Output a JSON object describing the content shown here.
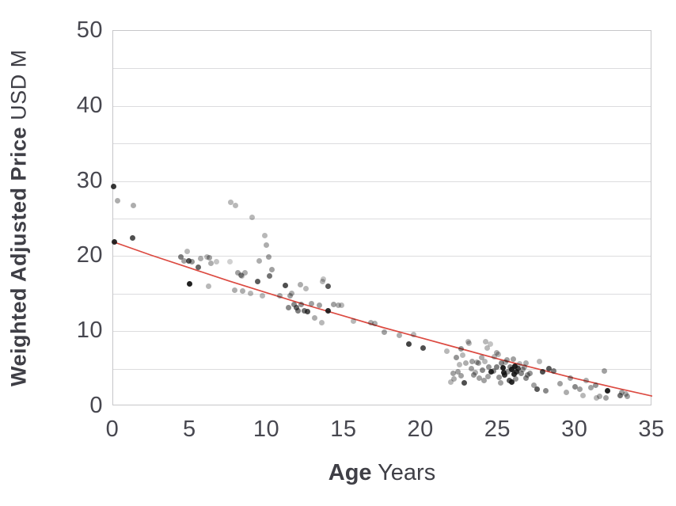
{
  "chart_data": {
    "type": "scatter",
    "title": "",
    "xlabel_bold": "Age",
    "xlabel_regular": "Years",
    "ylabel_bold": "Weighted Adjusted Price",
    "ylabel_regular": "USD M",
    "xlim": [
      0,
      35
    ],
    "ylim": [
      0,
      50
    ],
    "x_ticks": [
      0,
      5,
      10,
      15,
      20,
      25,
      30,
      35
    ],
    "y_ticks": [
      0,
      10,
      20,
      30,
      40,
      50
    ],
    "gridlines_y": [
      5,
      10,
      15,
      20,
      25,
      30,
      35,
      40,
      45
    ],
    "grid": "horizontal-only",
    "legend": "none",
    "colors": {
      "point": "#141414",
      "trend": "#dc4a41",
      "grid": "#dcdcde",
      "frame": "#c6c6c9",
      "tick_text": "#47474f",
      "title_text": "#3f3f46",
      "background": "#ffffff"
    },
    "points_format": [
      "age_years",
      "price_usd_m",
      "opacity"
    ],
    "points": [
      [
        0.05,
        29.3,
        0.85
      ],
      [
        0.3,
        27.4,
        0.35
      ],
      [
        1.3,
        26.7,
        0.35
      ],
      [
        0.1,
        21.9,
        0.9
      ],
      [
        1.25,
        22.4,
        0.75
      ],
      [
        4.4,
        19.9,
        0.55
      ],
      [
        4.6,
        19.4,
        0.4
      ],
      [
        4.8,
        20.6,
        0.3
      ],
      [
        4.9,
        19.4,
        0.75
      ],
      [
        5.1,
        19.2,
        0.45
      ],
      [
        5.5,
        18.5,
        0.65
      ],
      [
        5.7,
        19.7,
        0.35
      ],
      [
        6.1,
        19.9,
        0.3
      ],
      [
        6.25,
        19.8,
        0.4
      ],
      [
        6.35,
        19.0,
        0.35
      ],
      [
        4.95,
        16.3,
        0.95
      ],
      [
        6.2,
        16.0,
        0.3
      ],
      [
        6.7,
        19.2,
        0.25
      ],
      [
        7.65,
        27.2,
        0.3
      ],
      [
        7.95,
        26.7,
        0.3
      ],
      [
        9.0,
        25.2,
        0.3
      ],
      [
        9.85,
        22.7,
        0.3
      ],
      [
        9.95,
        21.5,
        0.35
      ],
      [
        7.6,
        19.2,
        0.2
      ],
      [
        8.1,
        17.8,
        0.4
      ],
      [
        8.3,
        17.5,
        0.45
      ],
      [
        8.35,
        17.3,
        0.3
      ],
      [
        8.55,
        17.8,
        0.35
      ],
      [
        7.9,
        15.5,
        0.35
      ],
      [
        8.4,
        15.4,
        0.35
      ],
      [
        8.9,
        15.0,
        0.3
      ],
      [
        9.4,
        16.6,
        0.7
      ],
      [
        9.5,
        19.4,
        0.35
      ],
      [
        9.7,
        14.7,
        0.3
      ],
      [
        10.1,
        19.9,
        0.4
      ],
      [
        10.15,
        17.4,
        0.6
      ],
      [
        10.3,
        18.2,
        0.4
      ],
      [
        10.8,
        14.7,
        0.35
      ],
      [
        11.2,
        16.1,
        0.75
      ],
      [
        11.4,
        13.1,
        0.5
      ],
      [
        11.5,
        14.7,
        0.4
      ],
      [
        11.6,
        15.0,
        0.35
      ],
      [
        11.75,
        13.6,
        0.5
      ],
      [
        11.9,
        13.1,
        0.65
      ],
      [
        12.0,
        12.7,
        0.55
      ],
      [
        12.15,
        16.2,
        0.35
      ],
      [
        12.2,
        13.6,
        0.45
      ],
      [
        12.4,
        12.7,
        0.6
      ],
      [
        12.5,
        15.7,
        0.3
      ],
      [
        12.6,
        12.6,
        0.75
      ],
      [
        12.9,
        13.7,
        0.4
      ],
      [
        13.1,
        11.8,
        0.35
      ],
      [
        13.4,
        13.4,
        0.4
      ],
      [
        13.55,
        11.1,
        0.3
      ],
      [
        13.6,
        16.6,
        0.3
      ],
      [
        13.65,
        16.9,
        0.25
      ],
      [
        13.95,
        16.0,
        0.7
      ],
      [
        13.95,
        12.7,
        0.9
      ],
      [
        14.3,
        13.6,
        0.4
      ],
      [
        14.6,
        13.4,
        0.35
      ],
      [
        14.85,
        13.4,
        0.3
      ],
      [
        15.6,
        11.3,
        0.3
      ],
      [
        16.75,
        11.1,
        0.35
      ],
      [
        17.0,
        11.0,
        0.35
      ],
      [
        17.6,
        9.9,
        0.4
      ],
      [
        18.6,
        9.4,
        0.35
      ],
      [
        19.5,
        9.5,
        0.3
      ],
      [
        19.2,
        8.3,
        0.8
      ],
      [
        20.1,
        7.8,
        0.75
      ],
      [
        21.65,
        7.3,
        0.3
      ],
      [
        21.9,
        3.2,
        0.3
      ],
      [
        22.05,
        4.4,
        0.4
      ],
      [
        22.1,
        3.6,
        0.35
      ],
      [
        22.3,
        6.5,
        0.45
      ],
      [
        22.4,
        4.6,
        0.4
      ],
      [
        22.5,
        5.5,
        0.3
      ],
      [
        22.6,
        4.1,
        0.4
      ],
      [
        22.6,
        7.6,
        0.45
      ],
      [
        22.7,
        6.8,
        0.3
      ],
      [
        22.8,
        3.1,
        0.75
      ],
      [
        22.9,
        5.8,
        0.35
      ],
      [
        23.05,
        8.6,
        0.3
      ],
      [
        23.1,
        8.4,
        0.3
      ],
      [
        23.25,
        5.0,
        0.4
      ],
      [
        23.3,
        6.0,
        0.4
      ],
      [
        23.4,
        4.2,
        0.45
      ],
      [
        23.5,
        4.5,
        0.35
      ],
      [
        23.6,
        5.9,
        0.35
      ],
      [
        23.7,
        5.7,
        0.4
      ],
      [
        23.75,
        3.7,
        0.4
      ],
      [
        23.9,
        6.5,
        0.35
      ],
      [
        24.0,
        4.8,
        0.5
      ],
      [
        24.1,
        3.4,
        0.4
      ],
      [
        24.15,
        6.0,
        0.3
      ],
      [
        24.2,
        8.6,
        0.3
      ],
      [
        24.3,
        7.8,
        0.3
      ],
      [
        24.35,
        4.0,
        0.4
      ],
      [
        24.4,
        5.2,
        0.45
      ],
      [
        24.5,
        8.3,
        0.25
      ],
      [
        24.55,
        4.6,
        0.9
      ],
      [
        24.7,
        4.7,
        0.5
      ],
      [
        24.75,
        6.6,
        0.3
      ],
      [
        24.9,
        7.1,
        0.35
      ],
      [
        24.9,
        5.2,
        0.55
      ],
      [
        25.0,
        6.9,
        0.3
      ],
      [
        25.05,
        3.9,
        0.45
      ],
      [
        25.15,
        3.1,
        0.4
      ],
      [
        25.2,
        5.7,
        0.5
      ],
      [
        25.3,
        5.1,
        0.95
      ],
      [
        25.35,
        4.5,
        0.9
      ],
      [
        25.4,
        4.2,
        0.85
      ],
      [
        25.45,
        5.9,
        0.35
      ],
      [
        25.55,
        6.2,
        0.4
      ],
      [
        25.6,
        4.6,
        0.45
      ],
      [
        25.7,
        3.4,
        0.7
      ],
      [
        25.8,
        5.2,
        0.5
      ],
      [
        25.9,
        4.9,
        0.95
      ],
      [
        25.9,
        3.2,
        0.9
      ],
      [
        26.0,
        6.3,
        0.4
      ],
      [
        26.05,
        4.3,
        0.9
      ],
      [
        26.1,
        5.3,
        0.95
      ],
      [
        26.15,
        3.6,
        0.45
      ],
      [
        26.2,
        4.6,
        0.85
      ],
      [
        26.3,
        5.0,
        0.8
      ],
      [
        26.4,
        5.6,
        0.3
      ],
      [
        26.5,
        4.4,
        0.5
      ],
      [
        26.6,
        4.9,
        0.4
      ],
      [
        26.7,
        5.2,
        0.35
      ],
      [
        26.8,
        5.8,
        0.35
      ],
      [
        26.8,
        3.7,
        0.5
      ],
      [
        26.9,
        4.2,
        0.45
      ],
      [
        27.05,
        4.4,
        0.45
      ],
      [
        27.3,
        2.8,
        0.4
      ],
      [
        27.5,
        2.3,
        0.7
      ],
      [
        27.7,
        6.0,
        0.3
      ],
      [
        27.9,
        4.6,
        0.75
      ],
      [
        28.1,
        2.1,
        0.5
      ],
      [
        28.3,
        5.0,
        0.7
      ],
      [
        28.6,
        4.7,
        0.55
      ],
      [
        29.0,
        3.0,
        0.4
      ],
      [
        29.4,
        1.8,
        0.35
      ],
      [
        29.7,
        3.7,
        0.4
      ],
      [
        30.0,
        2.6,
        0.5
      ],
      [
        30.3,
        2.3,
        0.4
      ],
      [
        30.5,
        1.4,
        0.3
      ],
      [
        30.7,
        3.4,
        0.35
      ],
      [
        31.0,
        2.5,
        0.4
      ],
      [
        31.3,
        2.8,
        0.45
      ],
      [
        31.4,
        1.1,
        0.3
      ],
      [
        31.6,
        1.3,
        0.35
      ],
      [
        31.9,
        4.7,
        0.4
      ],
      [
        32.1,
        2.1,
        0.95
      ],
      [
        32.0,
        1.1,
        0.4
      ],
      [
        32.9,
        1.4,
        0.6
      ],
      [
        33.0,
        1.8,
        0.4
      ],
      [
        33.3,
        1.6,
        0.35
      ],
      [
        33.4,
        1.3,
        0.4
      ]
    ],
    "trend_line": {
      "description": "quadratic regression curve",
      "color": "#dc4a41",
      "x": [
        0,
        2.5,
        5,
        7.5,
        10,
        12.5,
        15,
        17.5,
        20,
        22.5,
        25,
        27.5,
        30,
        32.5,
        35
      ],
      "y": [
        21.9,
        20.1,
        18.4,
        16.7,
        15.1,
        13.5,
        12.0,
        10.5,
        9.1,
        7.7,
        6.3,
        5.0,
        3.7,
        2.5,
        1.35
      ]
    }
  }
}
